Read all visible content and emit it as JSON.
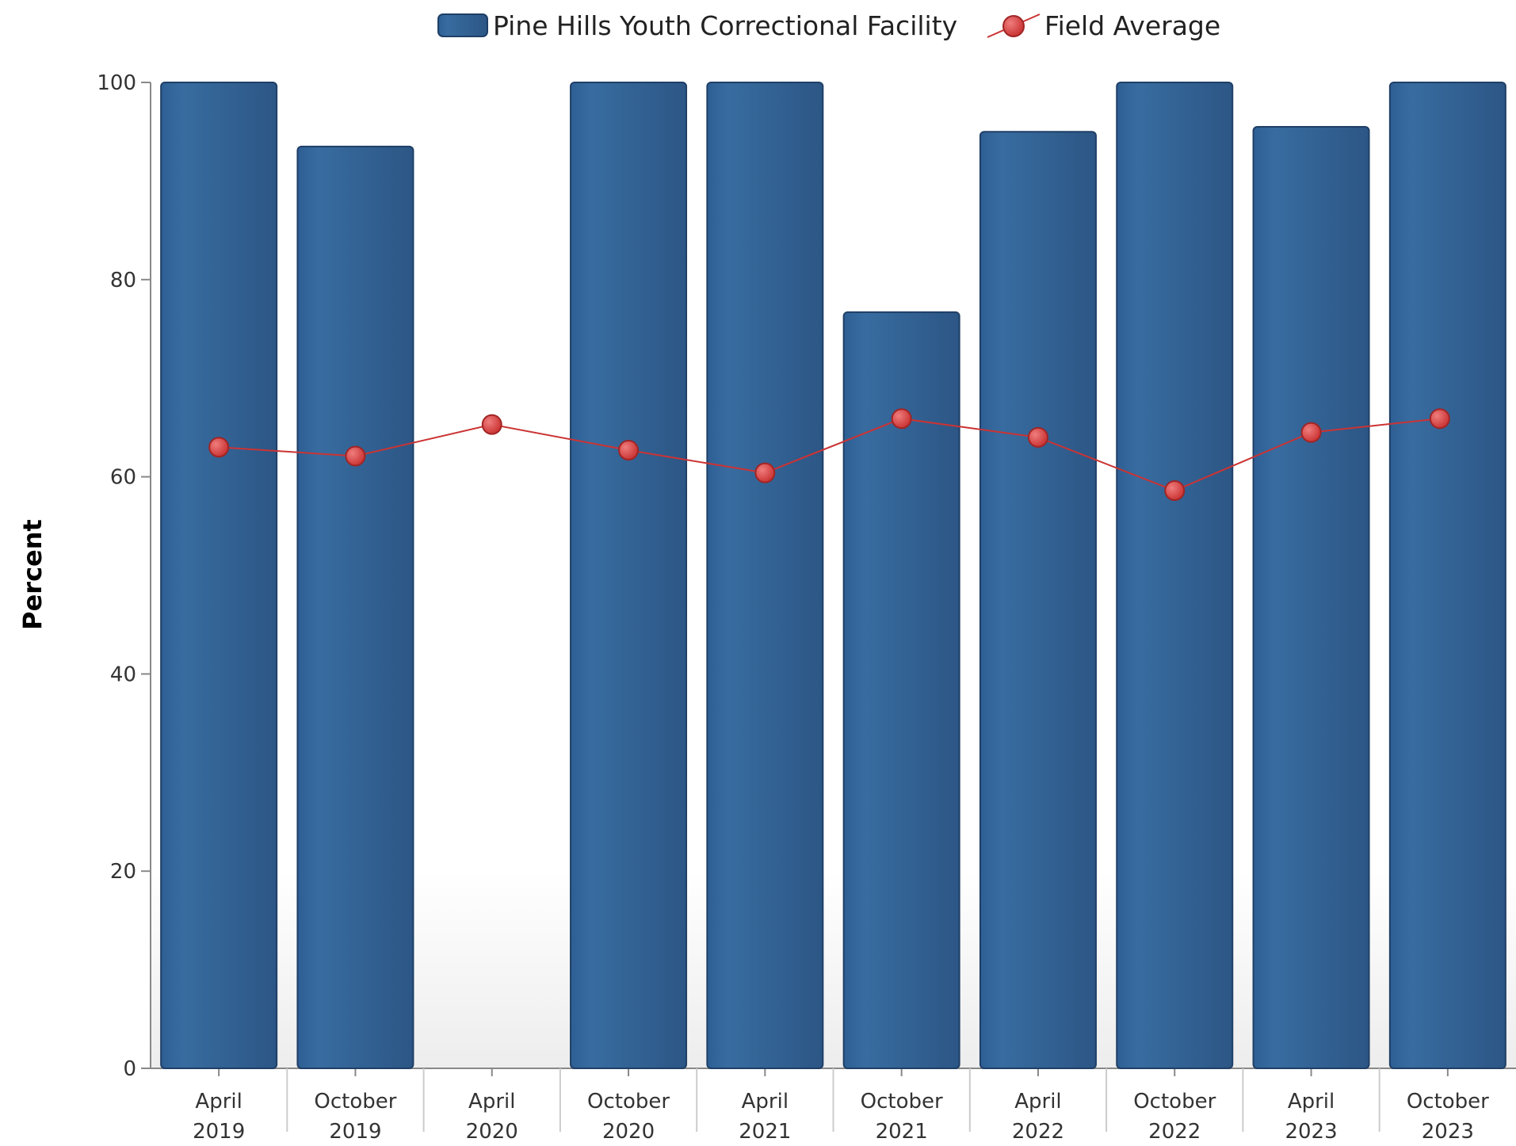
{
  "chart_data": {
    "type": "bar",
    "title": "",
    "xlabel": "",
    "ylabel": "Percent",
    "ylim": [
      0,
      100
    ],
    "yticks": [
      0,
      20,
      40,
      60,
      80,
      100
    ],
    "grid": false,
    "legend_position": "top-center",
    "categories": [
      [
        "April",
        "2019"
      ],
      [
        "October",
        "2019"
      ],
      [
        "April",
        "2020"
      ],
      [
        "October",
        "2020"
      ],
      [
        "April",
        "2021"
      ],
      [
        "October",
        "2021"
      ],
      [
        "April",
        "2022"
      ],
      [
        "October",
        "2022"
      ],
      [
        "April",
        "2023"
      ],
      [
        "October",
        "2023"
      ]
    ],
    "series": [
      {
        "name": "Pine Hills Youth Correctional Facility",
        "type": "bar",
        "color": "#336699",
        "values": [
          100,
          93.5,
          null,
          100,
          100,
          76.7,
          95,
          100,
          95.5,
          100
        ]
      },
      {
        "name": "Field Average",
        "type": "line",
        "color": "#cc3333",
        "values": [
          63,
          62.1,
          65.3,
          62.7,
          60.4,
          65.9,
          64,
          58.6,
          64.5,
          65.9
        ]
      }
    ]
  }
}
